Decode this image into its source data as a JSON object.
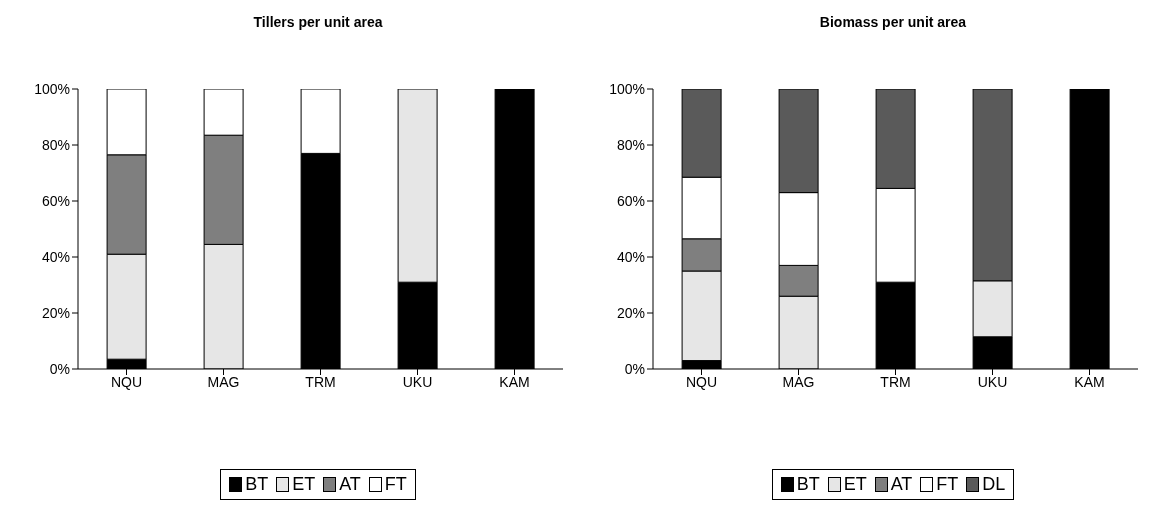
{
  "chart_data": [
    {
      "type": "bar",
      "title": "Tillers per unit area",
      "stacked": true,
      "categories": [
        "NQU",
        "MAG",
        "TRM",
        "UKU",
        "KAM"
      ],
      "series": [
        {
          "name": "BT",
          "color": "#000000",
          "values": [
            3.5,
            0,
            77,
            31,
            100
          ]
        },
        {
          "name": "ET",
          "color": "#e6e6e6",
          "values": [
            37.5,
            44.5,
            0,
            69,
            0
          ]
        },
        {
          "name": "AT",
          "color": "#7f7f7f",
          "values": [
            35.5,
            39,
            0,
            0,
            0
          ]
        },
        {
          "name": "FT",
          "color": "#ffffff",
          "values": [
            23.5,
            16.5,
            23,
            0,
            0
          ]
        }
      ],
      "ylim": [
        0,
        100
      ],
      "yticks": [
        {
          "value": 0,
          "label": "0%"
        },
        {
          "value": 20,
          "label": "20%"
        },
        {
          "value": 40,
          "label": "40%"
        },
        {
          "value": 60,
          "label": "60%"
        },
        {
          "value": 80,
          "label": "80%"
        },
        {
          "value": 100,
          "label": "100%"
        }
      ],
      "grid": false,
      "legend": "bottom"
    },
    {
      "type": "bar",
      "title": "Biomass per unit area",
      "stacked": true,
      "categories": [
        "NQU",
        "MAG",
        "TRM",
        "UKU",
        "KAM"
      ],
      "series": [
        {
          "name": "BT",
          "color": "#000000",
          "values": [
            3,
            0,
            31,
            11.5,
            100
          ]
        },
        {
          "name": "ET",
          "color": "#e6e6e6",
          "values": [
            32,
            26,
            0,
            20,
            0
          ]
        },
        {
          "name": "AT",
          "color": "#7f7f7f",
          "values": [
            11.5,
            11,
            0,
            0,
            0
          ]
        },
        {
          "name": "FT",
          "color": "#ffffff",
          "values": [
            22,
            26,
            33.5,
            0,
            0
          ]
        },
        {
          "name": "DL",
          "color": "#5a5a5a",
          "values": [
            31.5,
            37,
            35.5,
            68.5,
            0
          ]
        }
      ],
      "ylim": [
        0,
        100
      ],
      "yticks": [
        {
          "value": 0,
          "label": "0%"
        },
        {
          "value": 20,
          "label": "20%"
        },
        {
          "value": 40,
          "label": "40%"
        },
        {
          "value": 60,
          "label": "60%"
        },
        {
          "value": 80,
          "label": "80%"
        },
        {
          "value": 100,
          "label": "100%"
        }
      ],
      "grid": false,
      "legend": "bottom"
    }
  ]
}
